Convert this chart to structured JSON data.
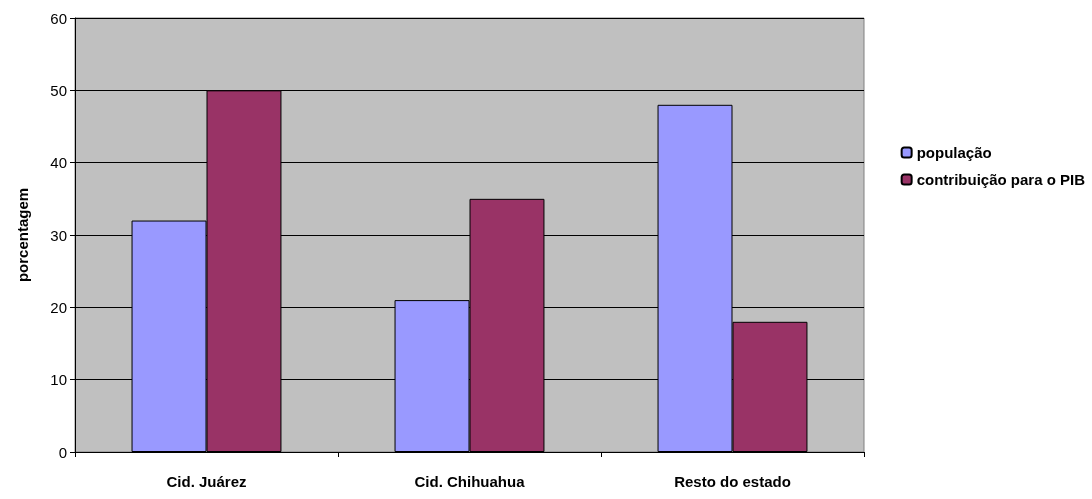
{
  "chart_data": {
    "type": "bar",
    "ylabel": "porcentagem",
    "categories": [
      "Cid. Juárez",
      "Cid. Chihuahua",
      "Resto do estado"
    ],
    "series": [
      {
        "name": "população",
        "color": "#9999ff",
        "values": [
          32,
          21,
          48
        ]
      },
      {
        "name": "contribuição para o PIB",
        "color": "#993366",
        "values": [
          50,
          35,
          18
        ]
      }
    ],
    "ylim": [
      0,
      60
    ],
    "yticks": [
      0,
      10,
      20,
      30,
      40,
      50,
      60
    ],
    "grid": "y",
    "legend": "right"
  }
}
